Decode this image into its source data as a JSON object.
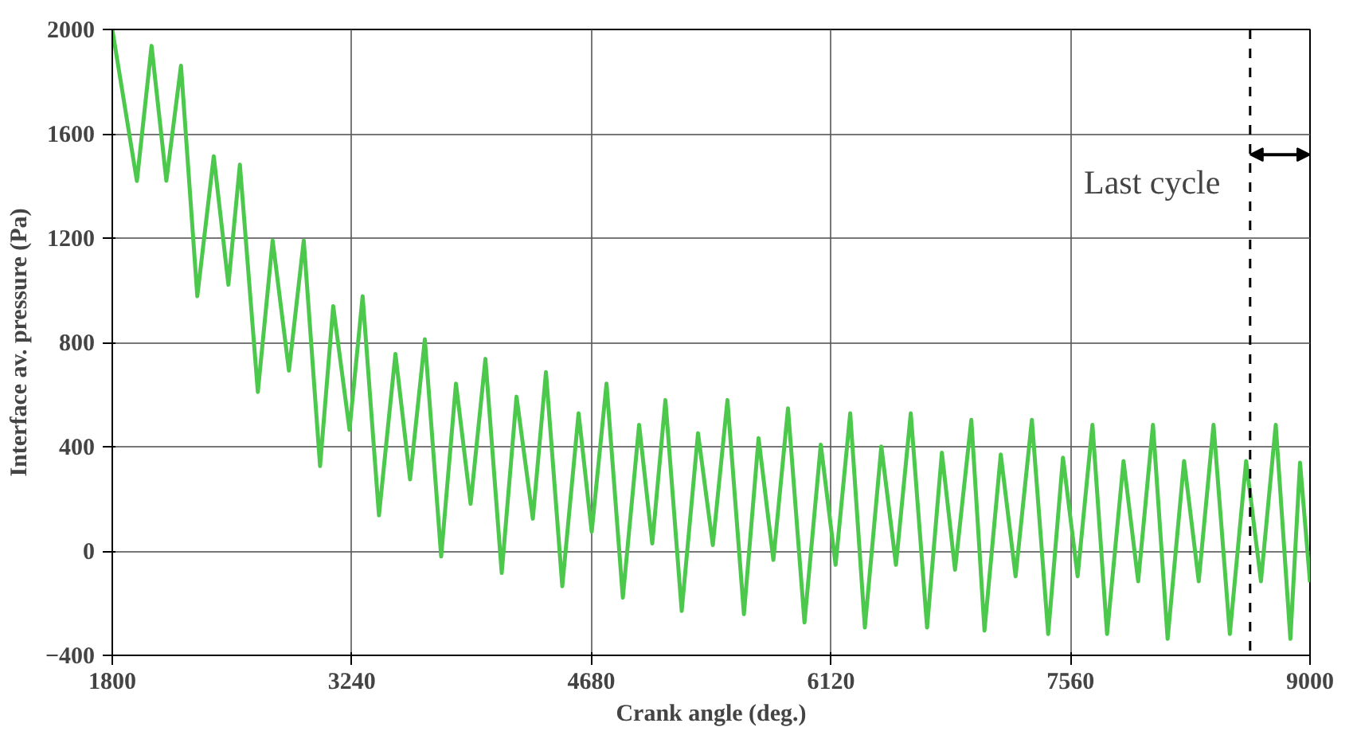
{
  "chart_data": {
    "type": "line",
    "xlabel": "Crank angle (deg.)",
    "ylabel": "Interface av. pressure (Pa)",
    "xlim": [
      1800,
      9000
    ],
    "ylim": [
      -400,
      2000
    ],
    "xticks": [
      1800,
      3240,
      4680,
      6120,
      7560,
      9000
    ],
    "yticks": [
      -400,
      0,
      400,
      800,
      1200,
      1600,
      2000
    ],
    "grid": true,
    "marker": "none",
    "line_style": "solid",
    "series": [
      {
        "color": "#4cc94c",
        "x": [
          1800,
          1948,
          2036,
          2125,
          2213,
          2311,
          2410,
          2498,
          2567,
          2675,
          2764,
          2862,
          2951,
          3049,
          3128,
          3226,
          3305,
          3403,
          3502,
          3590,
          3679,
          3777,
          3866,
          3954,
          4043,
          4141,
          4230,
          4328,
          4407,
          4505,
          4603,
          4682,
          4771,
          4869,
          4967,
          5046,
          5125,
          5223,
          5321,
          5410,
          5498,
          5597,
          5685,
          5774,
          5862,
          5961,
          6059,
          6148,
          6236,
          6324,
          6423,
          6511,
          6600,
          6698,
          6787,
          6866,
          6964,
          7043,
          7141,
          7230,
          7328,
          7426,
          7515,
          7603,
          7692,
          7780,
          7879,
          7967,
          8056,
          8144,
          8243,
          8331,
          8420,
          8518,
          8616,
          8705,
          8794,
          8882,
          8940,
          9000
        ],
        "values": [
          2000,
          1419,
          1937,
          1420,
          1861,
          977,
          1514,
          1021,
          1482,
          610,
          1191,
          692,
          1191,
          326,
          939,
          465,
          977,
          137,
          756,
          275,
          812,
          -21,
          642,
          181,
          737,
          -84,
          592,
          124,
          686,
          -135,
          528,
          74,
          642,
          -179,
          484,
          29,
          579,
          -230,
          452,
          23,
          579,
          -242,
          433,
          -34,
          547,
          -274,
          408,
          -53,
          528,
          -293,
          401,
          -53,
          528,
          -293,
          377,
          -72,
          503,
          -305,
          370,
          -97,
          503,
          -318,
          358,
          -97,
          484,
          -318,
          345,
          -116,
          484,
          -337,
          345,
          -116,
          484,
          -318,
          345,
          -116,
          484,
          -337,
          339,
          -120
        ]
      }
    ],
    "ref_lines": [
      {
        "axis": "x",
        "value": 8640,
        "line_style": "dashed",
        "color": "#000000"
      }
    ],
    "annotations": [
      "Last cycle"
    ]
  }
}
